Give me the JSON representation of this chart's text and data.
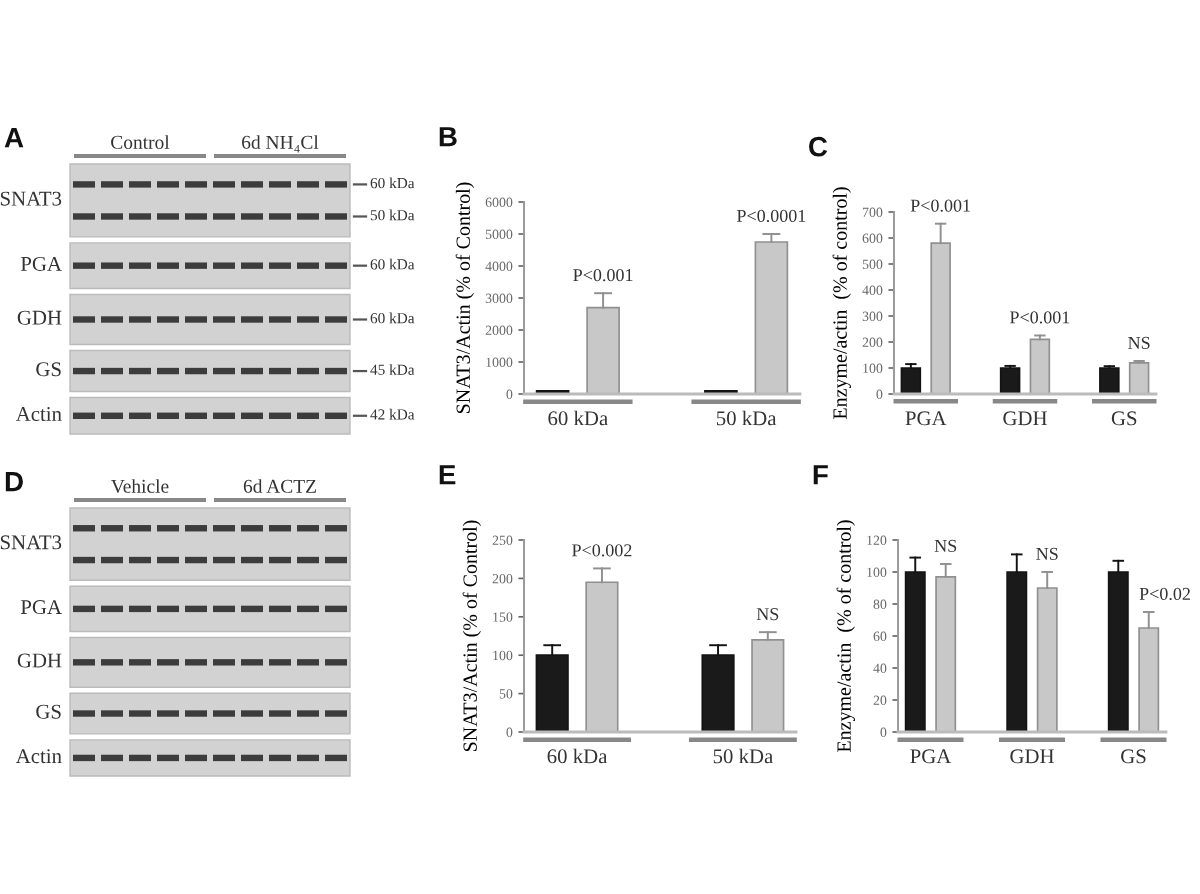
{
  "chart_data": [
    {
      "type": "other",
      "title": "A",
      "categories": [
        "Control",
        "6d NH₄Cl"
      ],
      "y_categories": [
        "SNAT3",
        "PGA",
        "GDH",
        "GS",
        "Actin"
      ],
      "annotations": [
        "60 kDa",
        "50 kDa",
        "60 kDa",
        "60 kDa",
        "45 kDa",
        "42 kDa"
      ]
    },
    {
      "type": "bar",
      "title": "B",
      "ylabel": "SNAT3/Actin (% of Control)",
      "categories": [
        "60 kDa",
        "50 kDa"
      ],
      "series": [
        {
          "color": "#1a1a1a",
          "values": [
            100,
            100
          ]
        },
        {
          "color": "#c8c8c8",
          "values": [
            2700,
            4750
          ],
          "errors": [
            [
              2700,
              3150
            ],
            [
              4750,
              5000
            ]
          ]
        }
      ],
      "ylim": [
        0,
        6000
      ],
      "yticks": [
        0,
        1000,
        2000,
        3000,
        4000,
        5000,
        6000
      ],
      "annotations": [
        "P<0.001",
        "P<0.0001"
      ]
    },
    {
      "type": "bar",
      "title": "C",
      "ylabel": "Enzyme/actin  (% of control)",
      "categories": [
        "PGA",
        "GDH",
        "GS"
      ],
      "series": [
        {
          "color": "#1a1a1a",
          "values": [
            100,
            100,
            100
          ],
          "errors": [
            [
              100,
              115
            ],
            [
              100,
              108
            ],
            [
              100,
              107
            ]
          ]
        },
        {
          "color": "#c8c8c8",
          "values": [
            580,
            210,
            120
          ],
          "errors": [
            [
              580,
              655
            ],
            [
              210,
              225
            ],
            [
              120,
              127
            ]
          ]
        }
      ],
      "ylim": [
        0,
        700
      ],
      "yticks": [
        0,
        100,
        200,
        300,
        400,
        500,
        600,
        700
      ],
      "annotations": [
        "P<0.001",
        "P<0.001",
        "NS"
      ]
    },
    {
      "type": "other",
      "title": "D",
      "categories": [
        "Vehicle",
        "6d ACTZ"
      ],
      "y_categories": [
        "SNAT3",
        "PGA",
        "GDH",
        "GS",
        "Actin"
      ]
    },
    {
      "type": "bar",
      "title": "E",
      "ylabel": "SNAT3/Actin (% of Control)",
      "categories": [
        "60 kDa",
        "50 kDa"
      ],
      "series": [
        {
          "color": "#1a1a1a",
          "values": [
            100,
            100
          ],
          "errors": [
            [
              100,
              113
            ],
            [
              100,
              113
            ]
          ]
        },
        {
          "color": "#c8c8c8",
          "values": [
            195,
            120
          ],
          "errors": [
            [
              195,
              213
            ],
            [
              120,
              130
            ]
          ]
        }
      ],
      "ylim": [
        0,
        250
      ],
      "yticks": [
        0,
        50,
        100,
        150,
        200,
        250
      ],
      "annotations": [
        "P<0.002",
        "NS"
      ]
    },
    {
      "type": "bar",
      "title": "F",
      "ylabel": "Enzyme/actin  (% of control)",
      "categories": [
        "PGA",
        "GDH",
        "GS"
      ],
      "series": [
        {
          "color": "#1a1a1a",
          "values": [
            100,
            100,
            100
          ],
          "errors": [
            [
              100,
              109
            ],
            [
              100,
              111
            ],
            [
              100,
              107
            ]
          ]
        },
        {
          "color": "#c8c8c8",
          "values": [
            97,
            90,
            65
          ],
          "errors": [
            [
              97,
              105
            ],
            [
              90,
              100
            ],
            [
              65,
              75
            ]
          ]
        }
      ],
      "ylim": [
        0,
        120
      ],
      "yticks": [
        0,
        20,
        40,
        60,
        80,
        100,
        120
      ],
      "annotations": [
        "NS",
        "NS",
        "P<0.02"
      ]
    }
  ]
}
